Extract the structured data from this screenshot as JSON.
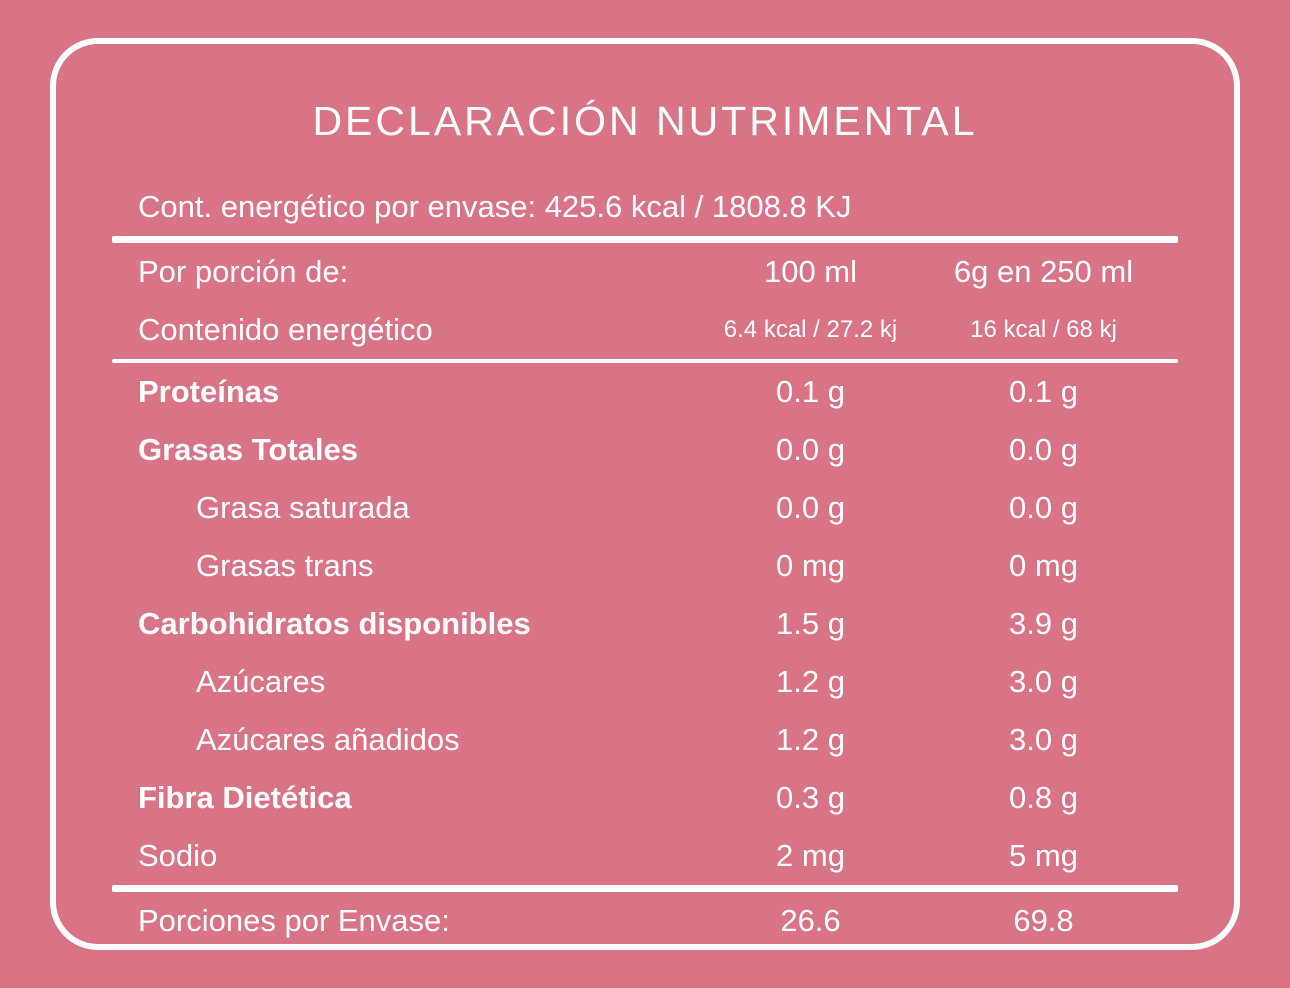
{
  "colors": {
    "background": "#D97487",
    "foreground": "#FFFFFF"
  },
  "title": "DECLARACIÓN NUTRIMENTAL",
  "energy_per_package": "Cont. energético por envase: 425.6 kcal / 1808.8 KJ",
  "table": {
    "header": {
      "label": "Por porción de:",
      "col1": "100 ml",
      "col2": "6g en 250 ml"
    },
    "energy_row": {
      "label": "Contenido energético",
      "col1": "6.4 kcal / 27.2 kj",
      "col2": "16 kcal / 68 kj"
    },
    "rows": [
      {
        "label": "Proteínas",
        "col1": "0.1 g",
        "col2": "0.1 g"
      },
      {
        "label": "Grasas Totales",
        "col1": "0.0 g",
        "col2": "0.0 g"
      },
      {
        "label": "Grasa saturada",
        "col1": "0.0 g",
        "col2": "0.0 g"
      },
      {
        "label": "Grasas trans",
        "col1": "0 mg",
        "col2": "0 mg"
      },
      {
        "label": "Carbohidratos disponibles",
        "col1": "1.5 g",
        "col2": "3.9 g"
      },
      {
        "label": "Azúcares",
        "col1": "1.2 g",
        "col2": "3.0 g"
      },
      {
        "label": "Azúcares añadidos",
        "col1": "1.2 g",
        "col2": "3.0 g"
      },
      {
        "label": "Fibra Dietética",
        "col1": "0.3 g",
        "col2": "0.8 g"
      },
      {
        "label": "Sodio",
        "col1": "2 mg",
        "col2": "5 mg"
      }
    ],
    "footer": {
      "label": "Porciones por Envase:",
      "col1": "26.6",
      "col2": "69.8"
    }
  }
}
